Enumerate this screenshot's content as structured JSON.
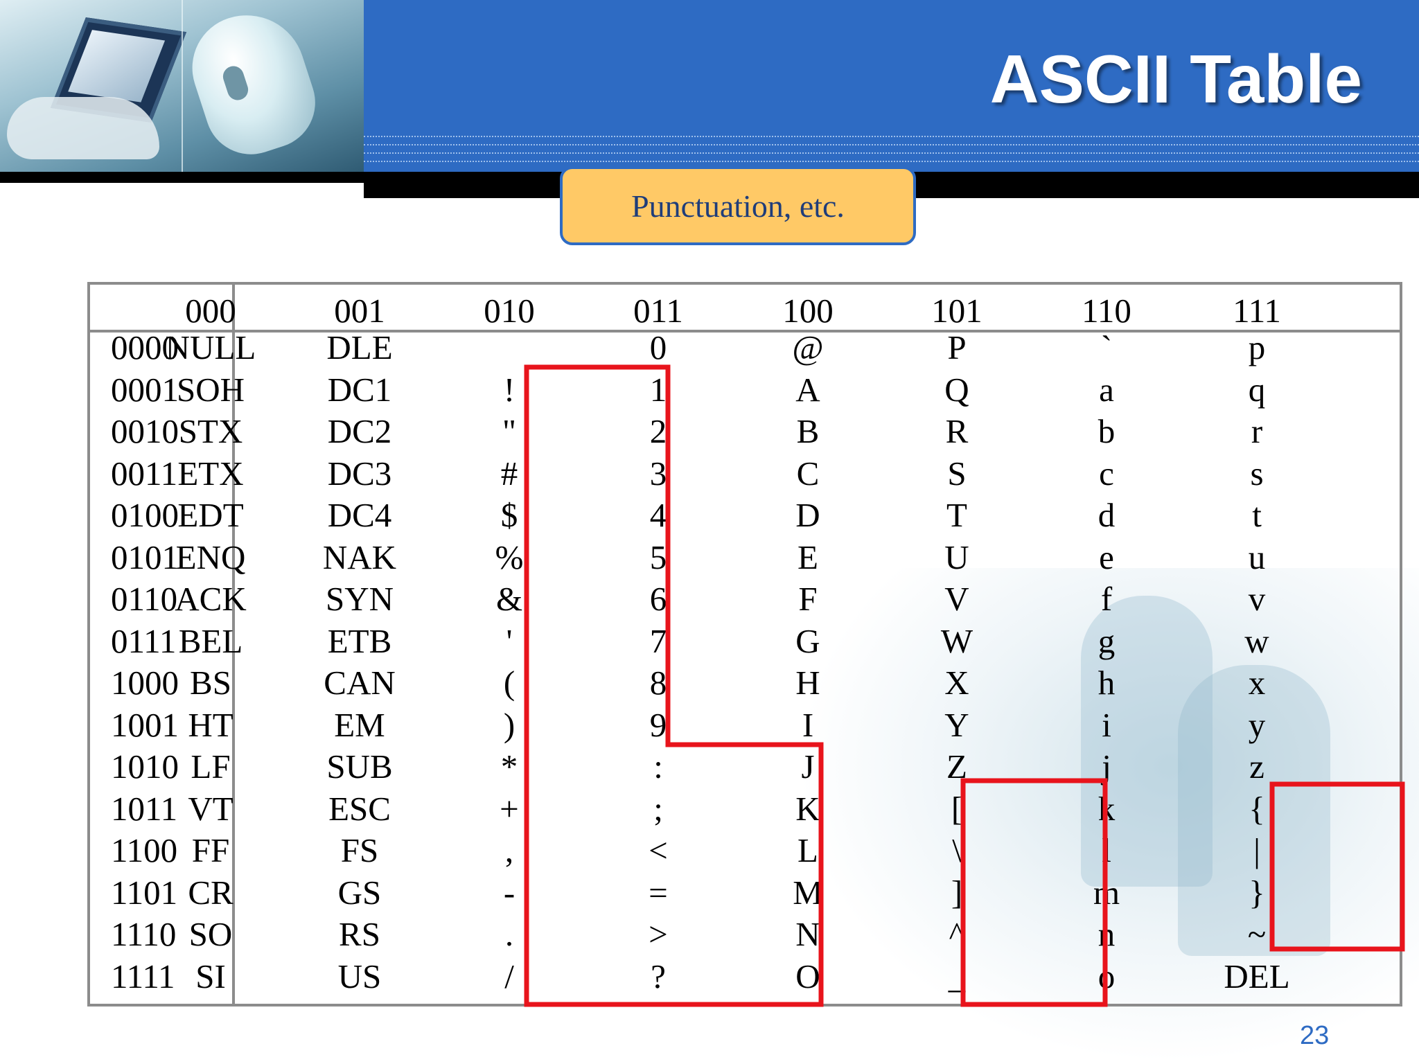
{
  "slide": {
    "title": "ASCII Table",
    "callout": "Punctuation, etc.",
    "page_number": "23"
  },
  "table": {
    "column_headers": [
      "000",
      "001",
      "010",
      "011",
      "100",
      "101",
      "110",
      "111"
    ],
    "rows": [
      {
        "bits": "0000",
        "cells": [
          "NULL",
          "DLE",
          "",
          "0",
          "@",
          "P",
          "`",
          "p"
        ]
      },
      {
        "bits": "0001",
        "cells": [
          "SOH",
          "DC1",
          "!",
          "1",
          "A",
          "Q",
          "a",
          "q"
        ]
      },
      {
        "bits": "0010",
        "cells": [
          "STX",
          "DC2",
          "\"",
          "2",
          "B",
          "R",
          "b",
          "r"
        ]
      },
      {
        "bits": "0011",
        "cells": [
          "ETX",
          "DC3",
          "#",
          "3",
          "C",
          "S",
          "c",
          "s"
        ]
      },
      {
        "bits": "0100",
        "cells": [
          "EDT",
          "DC4",
          "$",
          "4",
          "D",
          "T",
          "d",
          "t"
        ]
      },
      {
        "bits": "0101",
        "cells": [
          "ENQ",
          "NAK",
          "%",
          "5",
          "E",
          "U",
          "e",
          "u"
        ]
      },
      {
        "bits": "0110",
        "cells": [
          "ACK",
          "SYN",
          "&",
          "6",
          "F",
          "V",
          "f",
          "v"
        ]
      },
      {
        "bits": "0111",
        "cells": [
          "BEL",
          "ETB",
          "'",
          "7",
          "G",
          "W",
          "g",
          "w"
        ]
      },
      {
        "bits": "1000",
        "cells": [
          "BS",
          "CAN",
          "(",
          "8",
          "H",
          "X",
          "h",
          "x"
        ]
      },
      {
        "bits": "1001",
        "cells": [
          "HT",
          "EM",
          ")",
          "9",
          "I",
          "Y",
          "i",
          "y"
        ]
      },
      {
        "bits": "1010",
        "cells": [
          "LF",
          "SUB",
          "*",
          ":",
          "J",
          "Z",
          "j",
          "z"
        ]
      },
      {
        "bits": "1011",
        "cells": [
          "VT",
          "ESC",
          "+",
          ";",
          "K",
          "[",
          "k",
          "{"
        ]
      },
      {
        "bits": "1100",
        "cells": [
          "FF",
          "FS",
          ",",
          "<",
          "L",
          "\\",
          "l",
          "|"
        ]
      },
      {
        "bits": "1101",
        "cells": [
          "CR",
          "GS",
          "-",
          "=",
          "M",
          "]",
          "m",
          "}"
        ]
      },
      {
        "bits": "1110",
        "cells": [
          "SO",
          "RS",
          ".",
          ">",
          "N",
          "^",
          "n",
          "~"
        ]
      },
      {
        "bits": "1111",
        "cells": [
          "SI",
          "US",
          "/",
          "?",
          "O",
          "_",
          "o",
          "DEL"
        ]
      }
    ]
  },
  "colors": {
    "header_blue": "#2e6bc3",
    "callout_fill": "#ffc966",
    "highlight_red": "#e8141c",
    "grid_gray": "#8c8c8c"
  }
}
